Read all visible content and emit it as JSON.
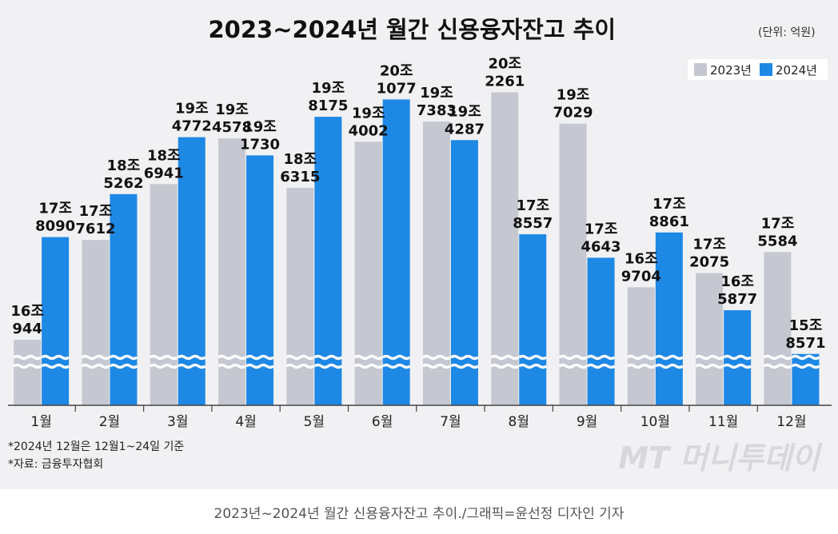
{
  "chart_data": {
    "type": "bar",
    "title": "2023~2024년 월간 신용융자잔고 추이",
    "unit": "(단위: 억원)",
    "categories": [
      "1월",
      "2월",
      "3월",
      "4월",
      "5월",
      "6월",
      "7월",
      "8월",
      "9월",
      "10월",
      "11월",
      "12월"
    ],
    "series": [
      {
        "name": "2023년",
        "color": "#c5c8d0",
        "values": [
          160944,
          177612,
          186941,
          194578,
          186315,
          194002,
          197383,
          202261,
          197029,
          169704,
          172075,
          175584
        ],
        "label_top": [
          "16조",
          "17조",
          "18조",
          "19조",
          "18조",
          "19조",
          "19조",
          "20조",
          "19조",
          "16조",
          "17조",
          "17조"
        ],
        "label_bottom": [
          "944",
          "7612",
          "6941",
          "4578",
          "6315",
          "4002",
          "7383",
          "2261",
          "7029",
          "9704",
          "2075",
          "5584"
        ]
      },
      {
        "name": "2024년",
        "color": "#1e88e5",
        "values": [
          178090,
          185262,
          194772,
          191730,
          198175,
          201077,
          194287,
          178557,
          174643,
          178861,
          165877,
          158571
        ],
        "label_top": [
          "17조",
          "18조",
          "19조",
          "19조",
          "19조",
          "20조",
          "19조",
          "17조",
          "17조",
          "17조",
          "16조",
          "15조"
        ],
        "label_bottom": [
          "8090",
          "5262",
          "4772",
          "1730",
          "8175",
          "1077",
          "4287",
          "8557",
          "4643",
          "8861",
          "5877",
          "8571"
        ]
      }
    ],
    "ylabel": "억원",
    "ylim": [
      150000,
      205000
    ],
    "axis_break": true,
    "legend": "top-right"
  },
  "notes": [
    "*2024년 12월은 12월1~24일 기준",
    "*자료: 금융투자협회"
  ],
  "watermark": "MT 머니투데이",
  "caption": "2023년~2024년 월간 신용융자잔고 추이./그래픽=윤선정 디자인 기자"
}
